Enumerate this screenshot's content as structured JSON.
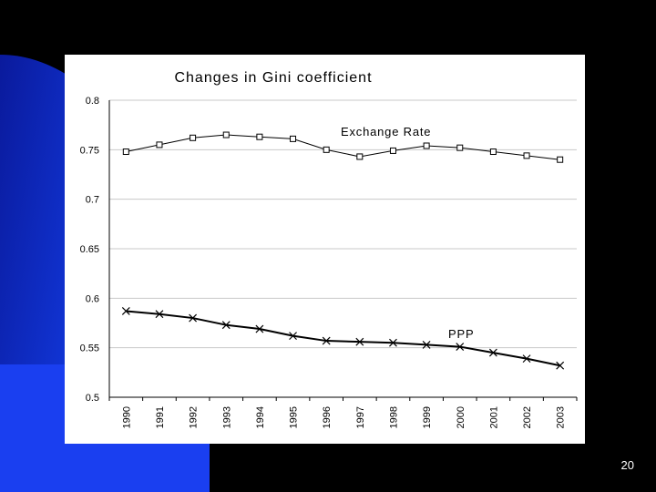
{
  "page_number": "20",
  "chart_data": {
    "type": "line",
    "title": "Changes in Gini coefficient",
    "xlabel": "",
    "ylabel": "",
    "categories": [
      "1990",
      "1991",
      "1992",
      "1993",
      "1994",
      "1995",
      "1996",
      "1997",
      "1998",
      "1999",
      "2000",
      "2001",
      "2002",
      "2003"
    ],
    "ylim": [
      0.5,
      0.8
    ],
    "yticks": [
      "0.8",
      "0.75",
      "0.7",
      "0.65",
      "0.6",
      "0.55",
      "0.5"
    ],
    "grid": true,
    "series": [
      {
        "name": "Exchange Rate",
        "marker": "square",
        "line_weight": "thin",
        "values": [
          0.748,
          0.755,
          0.762,
          0.765,
          0.763,
          0.761,
          0.75,
          0.743,
          0.749,
          0.754,
          0.752,
          0.748,
          0.744,
          0.74
        ]
      },
      {
        "name": "PPP",
        "marker": "x",
        "line_weight": "thick",
        "values": [
          0.587,
          0.584,
          0.58,
          0.573,
          0.569,
          0.562,
          0.557,
          0.556,
          0.555,
          0.553,
          0.551,
          0.545,
          0.539,
          0.532
        ]
      }
    ],
    "colors": {
      "line": "#000000",
      "grid": "#c8c8c8",
      "panel": "#ffffff"
    }
  }
}
